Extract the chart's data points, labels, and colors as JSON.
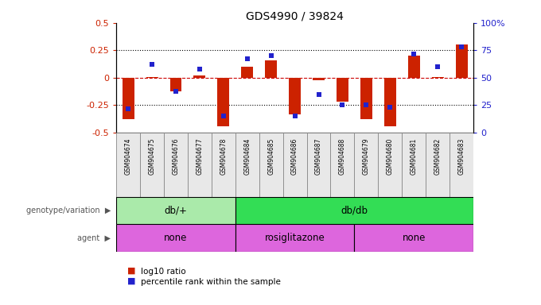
{
  "title": "GDS4990 / 39824",
  "samples": [
    "GSM904674",
    "GSM904675",
    "GSM904676",
    "GSM904677",
    "GSM904678",
    "GSM904684",
    "GSM904685",
    "GSM904686",
    "GSM904687",
    "GSM904688",
    "GSM904679",
    "GSM904680",
    "GSM904681",
    "GSM904682",
    "GSM904683"
  ],
  "log10_ratio": [
    -0.38,
    0.01,
    -0.12,
    0.02,
    -0.44,
    0.1,
    0.16,
    -0.33,
    -0.02,
    -0.22,
    -0.38,
    -0.44,
    0.2,
    0.01,
    0.3
  ],
  "percentile_rank": [
    22,
    62,
    38,
    58,
    15,
    67,
    70,
    15,
    35,
    25,
    25,
    23,
    72,
    60,
    78
  ],
  "genotype_groups": [
    {
      "label": "db/+",
      "start": 0,
      "end": 5,
      "color": "#aaeaaa"
    },
    {
      "label": "db/db",
      "start": 5,
      "end": 15,
      "color": "#33dd55"
    }
  ],
  "agent_groups": [
    {
      "label": "none",
      "start": 0,
      "end": 5,
      "color": "#dd66dd"
    },
    {
      "label": "rosiglitazone",
      "start": 5,
      "end": 10,
      "color": "#dd66dd"
    },
    {
      "label": "none",
      "start": 10,
      "end": 15,
      "color": "#dd66dd"
    }
  ],
  "bar_color": "#cc2200",
  "dot_color": "#2222cc",
  "ylim": [
    -0.5,
    0.5
  ],
  "yticks_left": [
    -0.5,
    -0.25,
    0.0,
    0.25,
    0.5
  ],
  "yticks_right_labels": [
    "0",
    "25",
    "50",
    "75",
    "100%"
  ],
  "hline_color": "#cc0000",
  "legend_red_label": "log10 ratio",
  "legend_blue_label": "percentile rank within the sample",
  "bar_width": 0.5,
  "dot_size": 5
}
